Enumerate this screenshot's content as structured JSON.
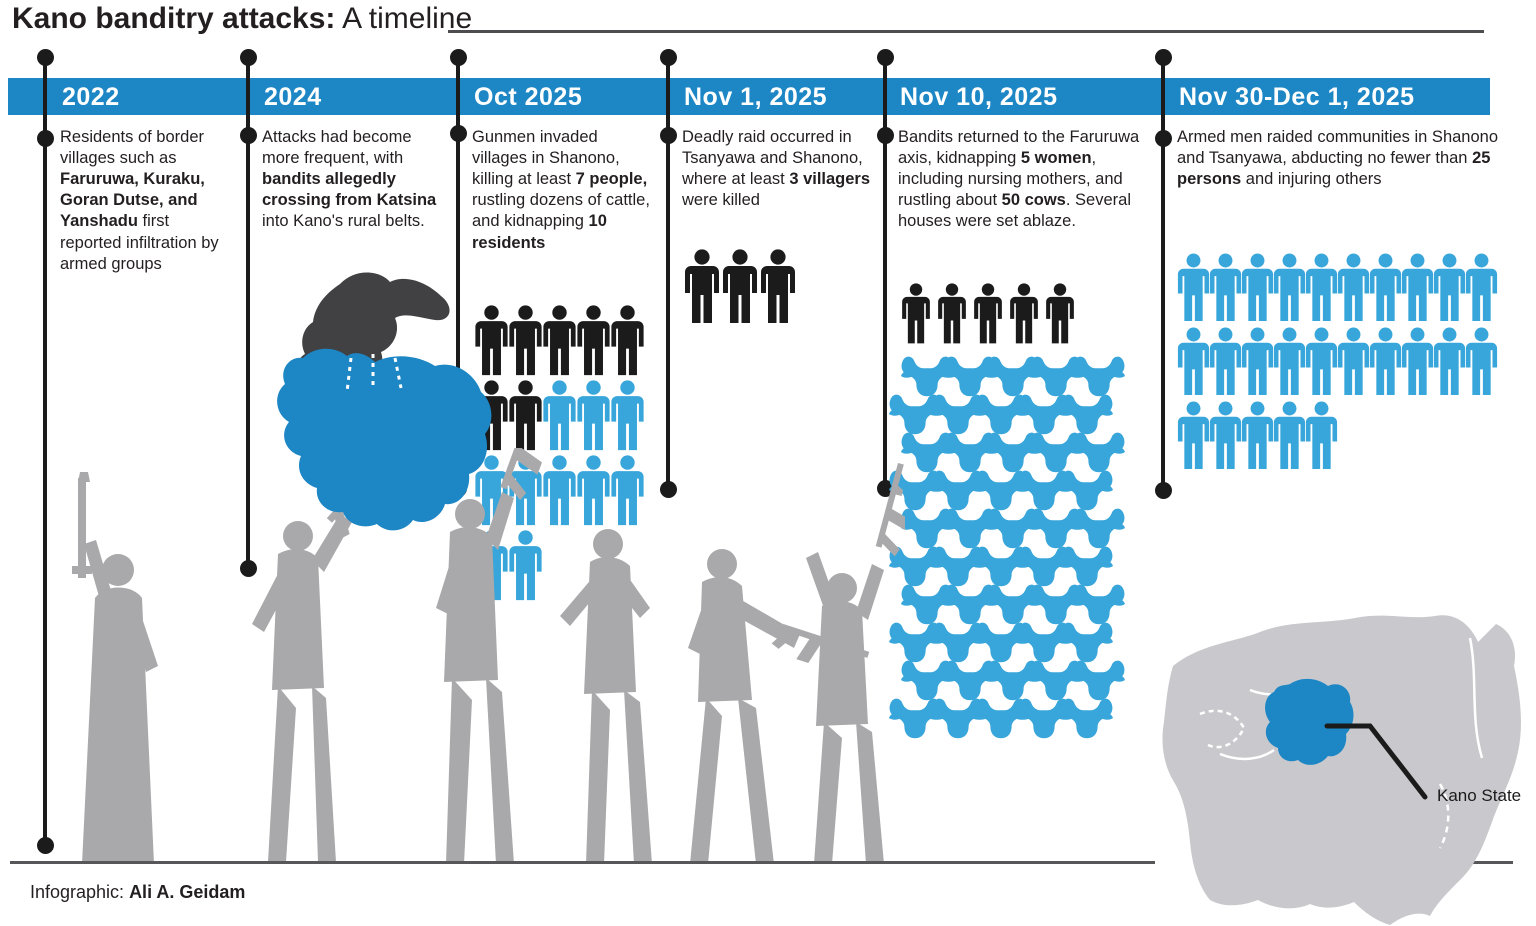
{
  "title": {
    "main": "Kano banditry attacks:",
    "sub": " A timeline"
  },
  "timeline": {
    "columns": [
      {
        "date": "2022",
        "body": [
          {
            "t": "Residents of border villages such as "
          },
          {
            "t": "Faruruwa, Kuraku, Goran Dutse, and Yanshadu",
            "b": true
          },
          {
            "t": " first reported infiltration by armed groups"
          }
        ]
      },
      {
        "date": "2024",
        "body": [
          {
            "t": "Attacks had become more frequent, with "
          },
          {
            "t": "bandits allegedly crossing from Katsina",
            "b": true
          },
          {
            "t": " into Kano's rural belts."
          }
        ]
      },
      {
        "date": "Oct 2025",
        "body": [
          {
            "t": "Gunmen invaded villages in Shanono, killing at least "
          },
          {
            "t": "7 people,",
            "b": true
          },
          {
            "t": " rustling dozens of cattle, and kidnapping "
          },
          {
            "t": "10 residents",
            "b": true
          }
        ],
        "person_rows": [
          [
            "black",
            "black",
            "black",
            "black",
            "black"
          ],
          [
            "black",
            "black",
            "blue",
            "blue",
            "blue"
          ],
          [
            "blue",
            "blue",
            "blue",
            "blue",
            "blue"
          ],
          [
            "blue",
            "blue"
          ]
        ],
        "killed": 7,
        "kidnapped": 10
      },
      {
        "date": "Nov 1, 2025",
        "body": [
          {
            "t": "Deadly raid occurred in Tsanyawa and Shanono, where at least "
          },
          {
            "t": "3 villagers",
            "b": true
          },
          {
            "t": " were killed"
          }
        ],
        "person_rows": [
          [
            "black",
            "black",
            "black"
          ]
        ],
        "killed": 3
      },
      {
        "date": "Nov 10, 2025",
        "body": [
          {
            "t": "Bandits returned to the Faruruwa axis, kidnapping "
          },
          {
            "t": "5 women",
            "b": true
          },
          {
            "t": ", including nursing mothers, and rustling about "
          },
          {
            "t": "50 cows",
            "b": true
          },
          {
            "t": ". Several houses were set ablaze."
          }
        ],
        "person_rows": [
          [
            "black",
            "black",
            "black",
            "black",
            "black"
          ]
        ],
        "cow_rows": [
          5,
          5,
          5,
          5,
          5,
          5,
          5,
          5,
          5,
          5
        ],
        "kidnapped_women": 5,
        "cows": 50
      },
      {
        "date": "Nov 30-Dec 1, 2025",
        "body": [
          {
            "t": "Armed men raided communities in Shanono and Tsanyawa, abducting no fewer than "
          },
          {
            "t": "25 persons",
            "b": true
          },
          {
            "t": " and injuring others"
          }
        ],
        "person_rows": [
          [
            "blue",
            "blue",
            "blue",
            "blue",
            "blue",
            "blue",
            "blue",
            "blue",
            "blue",
            "blue"
          ],
          [
            "blue",
            "blue",
            "blue",
            "blue",
            "blue",
            "blue",
            "blue",
            "blue",
            "blue",
            "blue"
          ],
          [
            "blue",
            "blue",
            "blue",
            "blue",
            "blue"
          ]
        ],
        "abducted": 25
      }
    ]
  },
  "map": {
    "label": "Kano State"
  },
  "footer": {
    "prefix": "Infographic: ",
    "author": "Ali A. Geidam"
  },
  "chart_data": {
    "type": "pictogram-timeline",
    "title": "Kano banditry attacks: A timeline",
    "categories": [
      "2022",
      "2024",
      "Oct 2025",
      "Nov 1, 2025",
      "Nov 10, 2025",
      "Nov 30-Dec 1, 2025"
    ],
    "series": [
      {
        "name": "people killed (black figures)",
        "values": [
          null,
          null,
          7,
          3,
          null,
          null
        ]
      },
      {
        "name": "people kidnapped/abducted (blue figures)",
        "values": [
          null,
          null,
          10,
          null,
          5,
          25
        ]
      },
      {
        "name": "cows rustled (blue cow icons)",
        "values": [
          null,
          null,
          null,
          null,
          50,
          null
        ]
      }
    ],
    "legend_position": "none",
    "annotations": [
      "Kano State highlighted on Nigeria map",
      "Katsina-to-Kano crossing mini map at 2024"
    ]
  },
  "colors": {
    "bar_blue": "#1d86c5",
    "icon_blue": "#38a6da",
    "icon_black": "#1b1b1b",
    "silhouette_gray": "#a9a9ab",
    "map_gray": "#c9c9cd",
    "katsina_dark": "#414042",
    "text": "#231f20"
  }
}
